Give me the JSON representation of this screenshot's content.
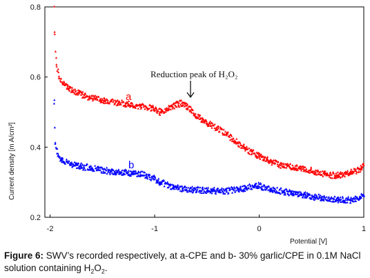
{
  "chart_data": {
    "type": "scatter",
    "title": "",
    "xlabel": "Potential [V]",
    "ylabel": "Current density [mA/cm²]",
    "xlim": [
      -2.05,
      1.0
    ],
    "ylim": [
      0.2,
      0.8
    ],
    "xticks": [
      -2,
      -1,
      0,
      1
    ],
    "yticks": [
      0.2,
      0.4,
      0.6,
      0.8
    ],
    "grid": false,
    "legend": "none",
    "series": [
      {
        "name": "a",
        "color": "#ff0000",
        "marker": "triangle",
        "x": [
          -1.96,
          -1.955,
          -1.95,
          -1.94,
          -1.93,
          -1.92,
          -1.9,
          -1.85,
          -1.8,
          -1.7,
          -1.6,
          -1.5,
          -1.4,
          -1.3,
          -1.2,
          -1.1,
          -1.0,
          -0.95,
          -0.9,
          -0.85,
          -0.8,
          -0.75,
          -0.7,
          -0.65,
          -0.6,
          -0.5,
          -0.4,
          -0.3,
          -0.2,
          -0.1,
          0.0,
          0.1,
          0.2,
          0.3,
          0.4,
          0.5,
          0.6,
          0.7,
          0.8,
          0.85,
          0.9,
          0.95,
          1.0
        ],
        "y": [
          0.8,
          0.73,
          0.68,
          0.64,
          0.62,
          0.605,
          0.59,
          0.575,
          0.565,
          0.55,
          0.54,
          0.535,
          0.53,
          0.525,
          0.52,
          0.515,
          0.51,
          0.5,
          0.505,
          0.515,
          0.52,
          0.525,
          0.52,
          0.505,
          0.49,
          0.47,
          0.455,
          0.435,
          0.41,
          0.39,
          0.375,
          0.36,
          0.35,
          0.345,
          0.34,
          0.335,
          0.325,
          0.32,
          0.32,
          0.325,
          0.33,
          0.335,
          0.345
        ]
      },
      {
        "name": "b",
        "color": "#0000ff",
        "marker": "triangle",
        "x": [
          -1.96,
          -1.955,
          -1.95,
          -1.94,
          -1.93,
          -1.92,
          -1.9,
          -1.85,
          -1.8,
          -1.7,
          -1.6,
          -1.5,
          -1.4,
          -1.3,
          -1.2,
          -1.1,
          -1.0,
          -0.95,
          -0.9,
          -0.8,
          -0.7,
          -0.6,
          -0.5,
          -0.4,
          -0.3,
          -0.2,
          -0.1,
          0.0,
          0.1,
          0.2,
          0.3,
          0.4,
          0.5,
          0.6,
          0.7,
          0.8,
          0.9,
          0.95,
          1.0
        ],
        "y": [
          0.53,
          0.46,
          0.42,
          0.395,
          0.385,
          0.375,
          0.365,
          0.358,
          0.352,
          0.345,
          0.34,
          0.335,
          0.33,
          0.328,
          0.325,
          0.322,
          0.31,
          0.3,
          0.295,
          0.285,
          0.28,
          0.278,
          0.277,
          0.275,
          0.276,
          0.28,
          0.285,
          0.29,
          0.28,
          0.275,
          0.27,
          0.265,
          0.26,
          0.255,
          0.252,
          0.25,
          0.25,
          0.255,
          0.265
        ]
      }
    ],
    "series_labels": [
      "a",
      "b"
    ],
    "annotation": {
      "text": "Reduction peak of H2O2",
      "arrow_target": {
        "x": -0.7,
        "y": 0.53
      }
    }
  },
  "labels": {
    "ylabel_text": "Current density [m A/cm²]",
    "xlabel_text": "Potential [V]",
    "annotation_text": "Reduction peak of H₂O₂",
    "series_a": "a",
    "series_b": "b",
    "ytick_labels": [
      "0.2",
      "0.4",
      "0.6",
      "0.8"
    ],
    "xtick_labels": [
      "-2",
      "-1",
      "0",
      "1"
    ]
  },
  "caption": {
    "label": "Figure 6:",
    "text_before_sub": " SWV’s recorded respectively, at a-CPE and b- 30% garlic/CPE in 0.1M NaCl solution containing H",
    "sub1": "2",
    "mid": "O",
    "sub2": "2",
    "end": "."
  }
}
